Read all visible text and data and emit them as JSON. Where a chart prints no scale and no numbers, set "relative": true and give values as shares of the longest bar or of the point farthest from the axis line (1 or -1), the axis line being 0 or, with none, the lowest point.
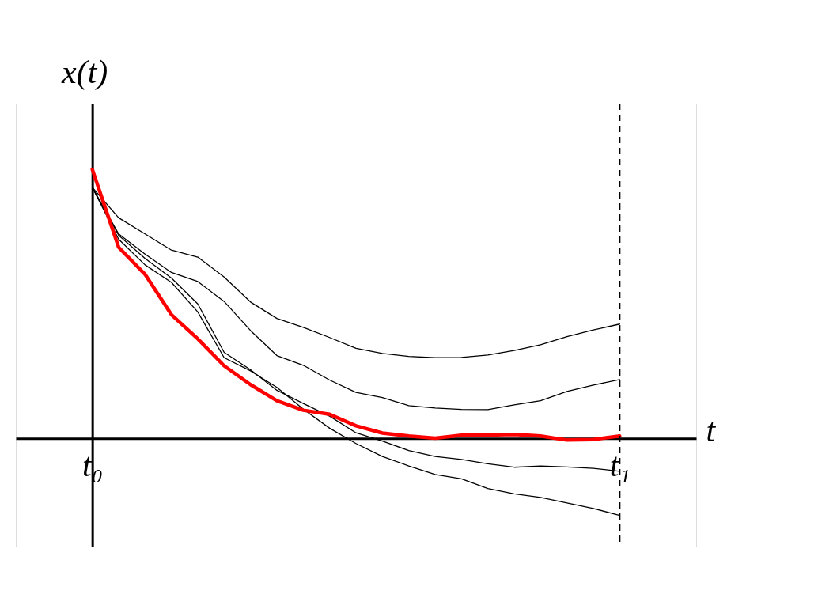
{
  "chart_data": {
    "type": "line",
    "relative": true,
    "xlabel": "t",
    "ylabel": "x(t)",
    "categories": [
      "t₀",
      null,
      null,
      null,
      null,
      null,
      null,
      null,
      null,
      null,
      null,
      null,
      null,
      null,
      null,
      null,
      null,
      null,
      null,
      null,
      "t₁"
    ],
    "tick_labels": "x",
    "grid": false,
    "marker": "none",
    "line_style": "solid",
    "series": [
      {
        "color": "#000000",
        "values": [
          0.933,
          0.82,
          0.76,
          0.7,
          0.674,
          0.6,
          0.507,
          0.446,
          0.413,
          0.375,
          0.335,
          0.316,
          0.305,
          0.3,
          0.301,
          0.31,
          0.327,
          0.348,
          0.378,
          0.403,
          0.425
        ]
      },
      {
        "color": "#000000",
        "values": [
          0.933,
          0.76,
          0.685,
          0.617,
          0.583,
          0.509,
          0.401,
          0.308,
          0.272,
          0.217,
          0.171,
          0.152,
          0.122,
          0.113,
          0.108,
          0.107,
          0.125,
          0.14,
          0.175,
          0.198,
          0.219
        ]
      },
      {
        "color": "#000000",
        "values": [
          0.933,
          0.755,
          0.669,
          0.596,
          0.5,
          0.32,
          0.255,
          0.179,
          0.13,
          0.083,
          0.021,
          -0.01,
          -0.045,
          -0.067,
          -0.078,
          -0.094,
          -0.107,
          -0.102,
          -0.106,
          -0.111,
          -0.122
        ]
      },
      {
        "color": "#000000",
        "values": [
          0.933,
          0.74,
          0.645,
          0.58,
          0.47,
          0.3,
          0.251,
          0.19,
          0.109,
          0.038,
          -0.019,
          -0.067,
          -0.102,
          -0.134,
          -0.15,
          -0.186,
          -0.206,
          -0.219,
          -0.24,
          -0.26,
          -0.286
        ]
      },
      {
        "color": "#ff0000",
        "values": [
          1.0,
          0.71,
          0.61,
          0.46,
          0.37,
          0.27,
          0.2,
          0.14,
          0.105,
          0.09,
          0.047,
          0.02,
          0.009,
          0.001,
          0.012,
          0.013,
          0.015,
          0.009,
          -0.006,
          -0.004,
          0.009
        ]
      }
    ],
    "ref_lines": [
      {
        "axis": "x",
        "value": "t₁",
        "color": "#000000",
        "line_style": "dashed"
      }
    ]
  }
}
